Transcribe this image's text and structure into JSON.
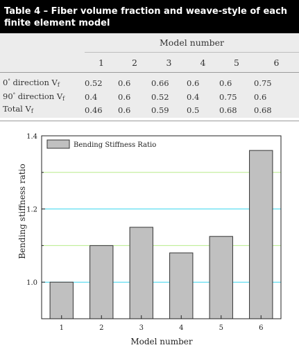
{
  "table": {
    "title_line1": "Table 4 – Fiber volume fraction and weave-style of each",
    "title_line2": "finite element model",
    "group_header": "Model number",
    "model_numbers": [
      "1",
      "2",
      "3",
      "4",
      "5",
      "6"
    ],
    "rows": [
      {
        "label_pre": "0",
        "label_deg": "°",
        "label_post": " direction V",
        "label_sub": "f",
        "values": [
          "0.52",
          "0.6",
          "0.66",
          "0.6",
          "0.6",
          "0.75"
        ]
      },
      {
        "label_pre": "90",
        "label_deg": "°",
        "label_post": " direction V",
        "label_sub": "f",
        "values": [
          "0.4",
          "0.6",
          "0.52",
          "0.4",
          "0.75",
          "0.6"
        ]
      },
      {
        "label_pre": "Total V",
        "label_deg": "",
        "label_post": "",
        "label_sub": "f",
        "values": [
          "0.46",
          "0.6",
          "0.59",
          "0.5",
          "0.68",
          "0.68"
        ]
      }
    ]
  },
  "chart_data": {
    "type": "bar",
    "categories": [
      "1",
      "2",
      "3",
      "4",
      "5",
      "6"
    ],
    "series": [
      {
        "name": "Bending Stiffness Ratio",
        "values": [
          1.0,
          1.1,
          1.15,
          1.08,
          1.125,
          1.36
        ]
      }
    ],
    "xlabel": "Model number",
    "ylabel": "Bending stiffness ratio",
    "ylim": [
      0.9,
      1.4
    ],
    "yticks": [
      1.0,
      1.2,
      1.4
    ],
    "ytick_labels": [
      "1.0",
      "1.2",
      "1.4"
    ],
    "grid": true,
    "gridlines": [
      {
        "value": 1.0,
        "color": "#38d6ee"
      },
      {
        "value": 1.1,
        "color": "#b7ec8a"
      },
      {
        "value": 1.2,
        "color": "#38d6ee"
      },
      {
        "value": 1.3,
        "color": "#b7ec8a"
      }
    ],
    "bar_color": "#c0c0c0",
    "legend_position": "top-left"
  }
}
